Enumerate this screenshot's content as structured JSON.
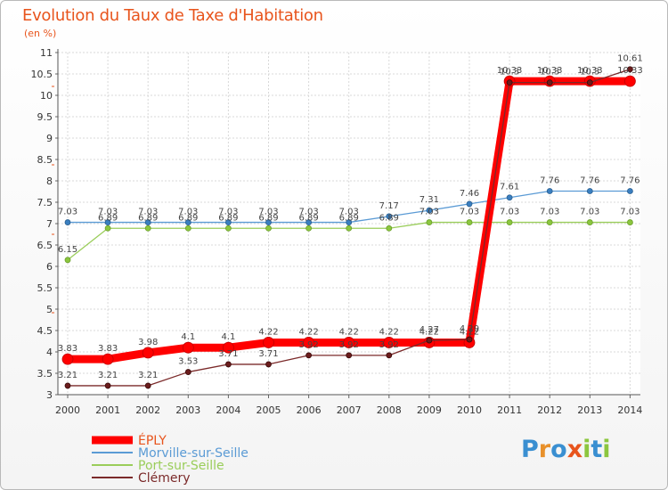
{
  "title": "Evolution du Taux de Taxe d'Habitation",
  "subtitle": "(en %)",
  "logo": {
    "text": "Proxiti",
    "letters": [
      "P",
      "r",
      "o",
      "x",
      "i",
      "t",
      "i"
    ],
    "colors": [
      "#3a8fd1",
      "#e8902a",
      "#3a8fd1",
      "#e8541c",
      "#8cc63f",
      "#3a8fd1",
      "#8cc63f"
    ]
  },
  "chart_data": {
    "type": "line",
    "x": [
      "2000",
      "2001",
      "2002",
      "2003",
      "2004",
      "2005",
      "2006",
      "2007",
      "2008",
      "2009",
      "2010",
      "2011",
      "2012",
      "2013",
      "2014"
    ],
    "ylim": [
      3,
      11
    ],
    "yticks": [
      "3",
      "3.5",
      "4",
      "4.5",
      "5",
      "5.5",
      "6",
      "6.5",
      "7",
      "7.5",
      "8",
      "8.5",
      "9",
      "9.5",
      "10",
      "10.5",
      "11"
    ],
    "grid": true,
    "legend_position": "bottom-left",
    "series": [
      {
        "name": "ÉPLY",
        "color": "#ff0000",
        "values": [
          3.83,
          3.83,
          3.98,
          4.1,
          4.1,
          4.22,
          4.22,
          4.22,
          4.22,
          4.22,
          4.22,
          10.33,
          10.33,
          10.33,
          10.33
        ],
        "labels": [
          "3.83",
          "3.83",
          "3.98",
          "4.1",
          "4.1",
          "4.22",
          "4.22",
          "4.22",
          "4.22",
          "4.22",
          "4.22",
          "10.33",
          "10.33",
          "10.33",
          "10.33"
        ]
      },
      {
        "name": "Morville-sur-Seille",
        "color": "#5b9bd5",
        "values": [
          7.03,
          7.03,
          7.03,
          7.03,
          7.03,
          7.03,
          7.03,
          7.03,
          7.17,
          7.31,
          7.46,
          7.61,
          7.76,
          7.76,
          7.76
        ],
        "labels": [
          "7.03",
          "7.03",
          "7.03",
          "7.03",
          "7.03",
          "7.03",
          "7.03",
          "7.03",
          "7.17",
          "7.31",
          "7.46",
          "7.61",
          "7.76",
          "7.76",
          "7.76"
        ]
      },
      {
        "name": "Port-sur-Seille",
        "color": "#9acd5a",
        "values": [
          6.15,
          6.89,
          6.89,
          6.89,
          6.89,
          6.89,
          6.89,
          6.89,
          6.89,
          7.03,
          7.03,
          7.03,
          7.03,
          7.03,
          7.03
        ],
        "labels": [
          "6.15",
          "6.89",
          "6.89",
          "6.89",
          "6.89",
          "6.89",
          "6.89",
          "6.89",
          "6.89",
          "7.03",
          "7.03",
          "7.03",
          "7.03",
          "7.03",
          "7.03"
        ]
      },
      {
        "name": "Clémery",
        "color": "#7b2a2a",
        "values": [
          3.21,
          3.21,
          3.21,
          3.53,
          3.71,
          3.71,
          3.92,
          3.92,
          3.92,
          4.27,
          4.29,
          10.3,
          10.3,
          10.3,
          10.61
        ],
        "labels": [
          "3.21",
          "3.21",
          "3.21",
          "3.53",
          "3.71",
          "3.71",
          "3.92",
          "3.92",
          "3.92",
          "4.27",
          "4.29",
          "10.3",
          "10.3",
          "10.3",
          "10.61"
        ]
      }
    ]
  }
}
